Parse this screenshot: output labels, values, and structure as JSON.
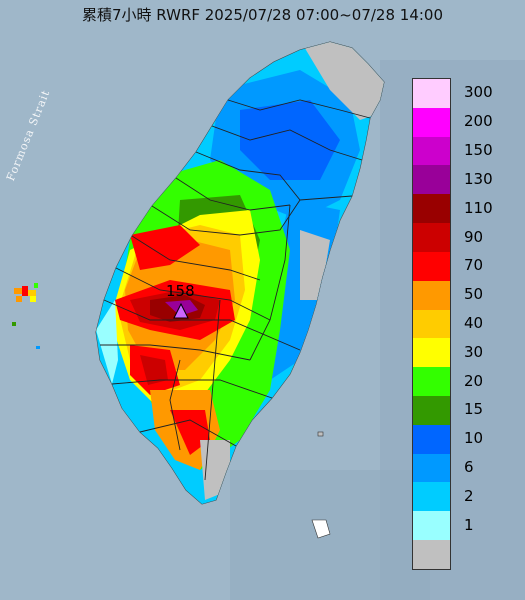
{
  "title": "累積7小時 RWRF 2025/07/28 07:00~07/28 14:00",
  "map_labels": {
    "strait": "Formosa Strait",
    "max_value": "158"
  },
  "legend": [
    {
      "label": "300",
      "color": "#ffccff"
    },
    {
      "label": "200",
      "color": "#ff00ff"
    },
    {
      "label": "150",
      "color": "#cc00cc"
    },
    {
      "label": "130",
      "color": "#990099"
    },
    {
      "label": "110",
      "color": "#990000"
    },
    {
      "label": "90",
      "color": "#cc0000"
    },
    {
      "label": "70",
      "color": "#ff0000"
    },
    {
      "label": "50",
      "color": "#ff9900"
    },
    {
      "label": "40",
      "color": "#ffcc00"
    },
    {
      "label": "30",
      "color": "#ffff00"
    },
    {
      "label": "20",
      "color": "#33ff00"
    },
    {
      "label": "15",
      "color": "#339900"
    },
    {
      "label": "10",
      "color": "#0066ff"
    },
    {
      "label": "6",
      "color": "#0099ff"
    },
    {
      "label": "2",
      "color": "#00ccff"
    },
    {
      "label": "1",
      "color": "#99ffff"
    },
    {
      "label": "",
      "color": "#c0c0c0"
    }
  ],
  "colors": {
    "sea": "#9fb7c9",
    "sea_deep": "#8fa9be",
    "land_nodata": "#c0c0c0",
    "county_line": "#222222",
    "max_marker": "#cc66ff"
  }
}
